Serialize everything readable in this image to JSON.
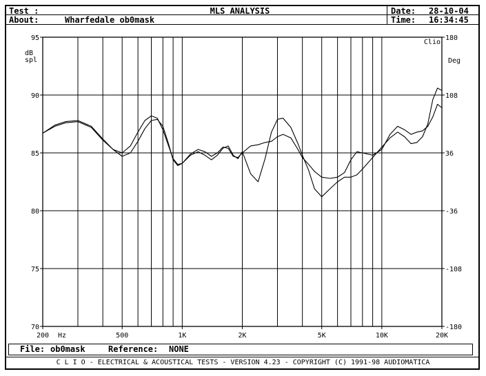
{
  "header": {
    "test_label": "Test :",
    "about_label": "About:",
    "about_value": "Wharfedale ob0mask",
    "title": "MLS ANALYSIS",
    "date_label": "Date:",
    "date_value": "28-10-04",
    "time_label": "Time:",
    "time_value": "16:34:45"
  },
  "file_bar": {
    "file_label": "File:",
    "file_value": "ob0mask",
    "reference_label": "Reference:",
    "reference_value": "NONE"
  },
  "footer": "C L I O  -  ELECTRICAL & ACOUSTICAL TESTS  -  VERSION 4.23  -  COPYRIGHT (C) 1991-98 AUDIOMATICA",
  "chart_data": {
    "type": "line",
    "title": "",
    "xlabel": "Hz",
    "ylabel": "dB\nspl",
    "y2label": "Deg",
    "corner_label": "Clio",
    "xscale": "log",
    "xlim": [
      200,
      20000
    ],
    "ylim": [
      70,
      95
    ],
    "y2lim": [
      -180,
      180
    ],
    "x_ticks": [
      {
        "value": 200,
        "label": "200"
      },
      {
        "value": 500,
        "label": "500"
      },
      {
        "value": 1000,
        "label": "1K"
      },
      {
        "value": 2000,
        "label": "2K"
      },
      {
        "value": 5000,
        "label": "5K"
      },
      {
        "value": 10000,
        "label": "10K"
      },
      {
        "value": 20000,
        "label": "20K"
      }
    ],
    "y_ticks": [
      70,
      75,
      80,
      85,
      90,
      95
    ],
    "y2_ticks": [
      -180,
      -108,
      -36,
      36,
      108,
      180
    ],
    "grid": true,
    "grid_freqs": [
      300,
      400,
      500,
      600,
      700,
      800,
      900,
      1000,
      2000,
      3000,
      4000,
      5000,
      6000,
      7000,
      8000,
      9000,
      10000
    ],
    "series": [
      {
        "x": [
          200,
          230,
          260,
          300,
          350,
          400,
          450,
          500,
          550,
          600,
          650,
          700,
          750,
          800,
          850,
          900,
          950,
          1000,
          1100,
          1200,
          1300,
          1400,
          1500,
          1600,
          1700,
          1800,
          1900,
          2000,
          2200,
          2400,
          2600,
          2800,
          3000,
          3200,
          3500,
          3800,
          4000,
          4300,
          4600,
          5000,
          5500,
          6000,
          6500,
          7000,
          7500,
          8000,
          9000,
          10000,
          11000,
          12000,
          13000,
          14000,
          15000,
          16000,
          17000,
          18000,
          19000,
          20000
        ],
        "y": [
          86.7,
          87.4,
          87.7,
          87.8,
          87.3,
          86.2,
          85.3,
          85.0,
          85.6,
          86.8,
          87.8,
          88.2,
          88.0,
          87.0,
          85.7,
          84.5,
          84.0,
          84.1,
          84.9,
          85.3,
          85.1,
          84.7,
          85.0,
          85.5,
          85.4,
          84.7,
          84.6,
          85.0,
          85.6,
          85.7,
          85.9,
          86.0,
          86.4,
          86.6,
          86.3,
          85.3,
          84.6,
          84.0,
          83.4,
          82.9,
          82.8,
          82.9,
          83.3,
          84.4,
          85.1,
          85.0,
          84.8,
          85.3,
          86.6,
          87.3,
          87.0,
          86.6,
          86.8,
          86.9,
          87.3,
          88.1,
          89.2,
          88.9
        ]
      },
      {
        "x": [
          200,
          230,
          260,
          300,
          350,
          400,
          450,
          500,
          550,
          600,
          650,
          700,
          750,
          800,
          850,
          900,
          950,
          1000,
          1100,
          1200,
          1300,
          1400,
          1500,
          1600,
          1700,
          1800,
          1900,
          2000,
          2200,
          2400,
          2600,
          2800,
          3000,
          3200,
          3500,
          3800,
          4000,
          4300,
          4600,
          5000,
          5500,
          6000,
          6500,
          7000,
          7500,
          8000,
          9000,
          10000,
          11000,
          12000,
          13000,
          14000,
          15000,
          16000,
          17000,
          18000,
          19000,
          20000
        ],
        "y": [
          86.7,
          87.3,
          87.6,
          87.7,
          87.2,
          86.1,
          85.3,
          84.7,
          85.0,
          86.0,
          87.1,
          87.8,
          87.9,
          87.3,
          85.9,
          84.4,
          83.9,
          84.1,
          84.8,
          85.1,
          84.8,
          84.4,
          84.8,
          85.4,
          85.6,
          84.8,
          84.5,
          85.1,
          83.2,
          82.5,
          84.5,
          86.8,
          87.9,
          88.0,
          87.2,
          85.8,
          84.8,
          83.5,
          81.9,
          81.2,
          81.9,
          82.5,
          82.9,
          82.9,
          83.1,
          83.6,
          84.6,
          85.5,
          86.3,
          86.8,
          86.4,
          85.8,
          85.9,
          86.4,
          87.5,
          89.6,
          90.6,
          90.4
        ]
      }
    ]
  }
}
